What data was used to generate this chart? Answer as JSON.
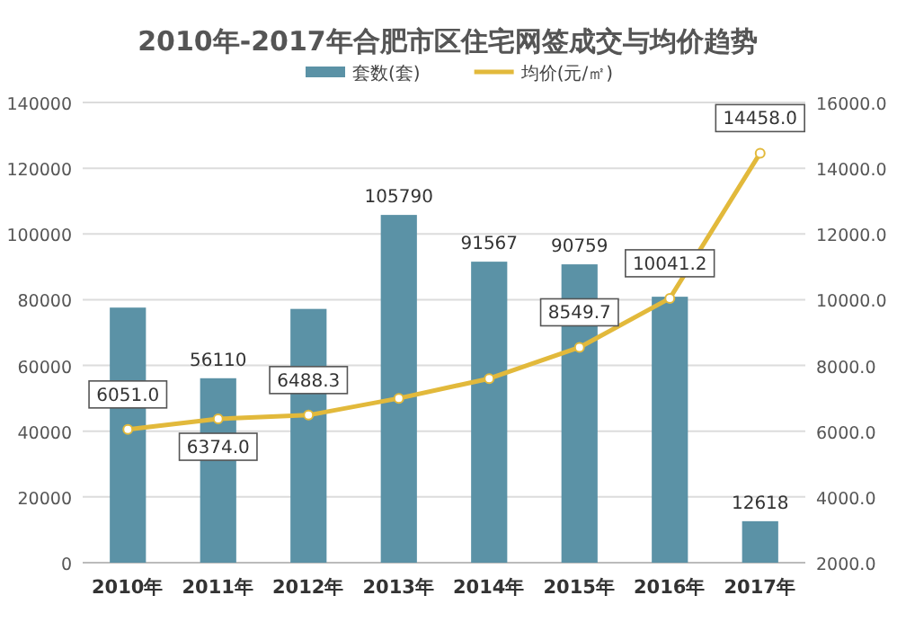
{
  "chart_data": {
    "type": "bar",
    "title": "2010年-2017年合肥市区住宅网签成交与均价趋势",
    "categories": [
      "2010年",
      "2011年",
      "2012年",
      "2013年",
      "2014年",
      "2015年",
      "2016年",
      "2017年"
    ],
    "series": [
      {
        "name": "套数(套)",
        "color": "#5b92a6",
        "values": [
          77600,
          56110,
          77200,
          105790,
          91567,
          90759,
          80900,
          12618
        ],
        "value_labels": [
          null,
          "56110",
          null,
          "105790",
          "91567",
          "90759",
          null,
          "12618"
        ]
      },
      {
        "name": "均价(元/㎡)",
        "type": "line",
        "axis": "y2",
        "color": "#e2b93b",
        "marker": "circle",
        "values": [
          6051.0,
          6374.0,
          6488.3,
          7000,
          7600,
          8549.7,
          10041.2,
          14458.0
        ],
        "value_labels": [
          "6051.0",
          "6374.0",
          "6488.3",
          null,
          null,
          "8549.7",
          "10041.2",
          "14458.0"
        ]
      }
    ],
    "ylim": [
      0,
      140000
    ],
    "yticks": [
      0,
      20000,
      40000,
      60000,
      80000,
      100000,
      120000,
      140000
    ],
    "y2lim": [
      2000,
      16000
    ],
    "y2ticks": [
      {
        "value": 2000,
        "label": "2000.0"
      },
      {
        "value": 4000,
        "label": "4000.0"
      },
      {
        "value": 6000,
        "label": "6000.0"
      },
      {
        "value": 8000,
        "label": "8000.0"
      },
      {
        "value": 10000,
        "label": "10000.0"
      },
      {
        "value": 12000,
        "label": "12000.0"
      },
      {
        "value": 14000,
        "label": "14000.0"
      },
      {
        "value": 16000,
        "label": "16000.0"
      }
    ],
    "grid": "y",
    "legend": "top"
  }
}
